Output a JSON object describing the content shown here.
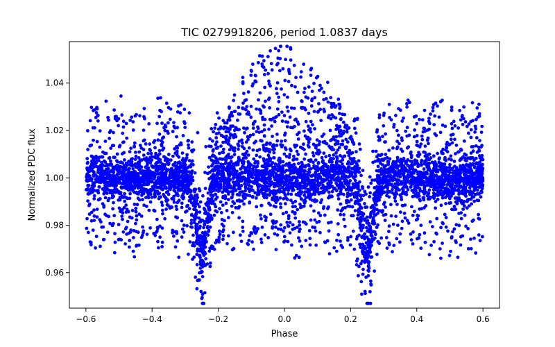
{
  "chart_data": {
    "type": "scatter",
    "title": "TIC 0279918206, period 1.0837 days",
    "xlabel": "Phase",
    "ylabel": "Normalized PDC flux",
    "xlim": [
      -0.65,
      0.65
    ],
    "ylim": [
      0.945,
      1.0575
    ],
    "x_ticks": [
      -0.6,
      -0.4,
      -0.2,
      0.0,
      0.2,
      0.4,
      0.6
    ],
    "x_tick_labels": [
      "−0.6",
      "−0.4",
      "−0.2",
      "0.0",
      "0.2",
      "0.4",
      "0.6"
    ],
    "y_ticks": [
      0.96,
      0.98,
      1.0,
      1.02,
      1.04
    ],
    "y_tick_labels": [
      "0.96",
      "0.98",
      "1.00",
      "1.02",
      "1.04"
    ],
    "marker_color": "#0000ff",
    "grid": false,
    "series": [
      {
        "name": "PDC flux",
        "phase_range": [
          -0.6,
          0.6
        ],
        "baseline_flux": 1.0,
        "core_flux_range": [
          0.991,
          1.011
        ],
        "wide_scatter_flux_range": [
          0.966,
          1.038
        ],
        "middle_hump_peak_flux": 1.054,
        "eclipses": [
          {
            "phase": -0.25,
            "min_flux": 0.952
          },
          {
            "phase": 0.25,
            "min_flux": 0.948
          }
        ]
      }
    ]
  }
}
